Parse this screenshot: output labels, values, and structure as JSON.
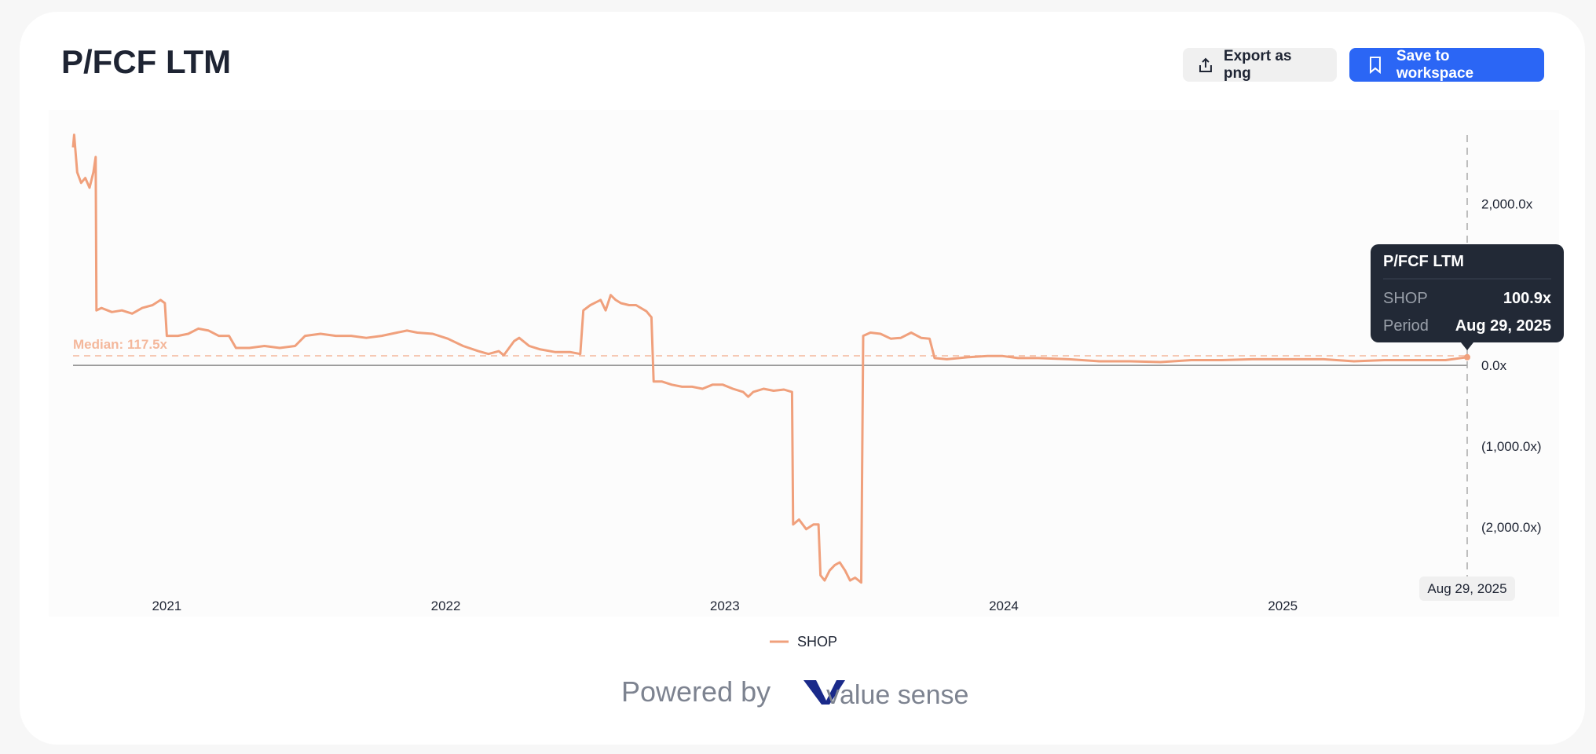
{
  "header": {
    "export_button": "Export as png",
    "save_button": "Save to workspace"
  },
  "chart_data": {
    "type": "line",
    "title": "P/FCF LTM",
    "x": [
      2020.664,
      2020.668,
      2020.679,
      2020.693,
      2020.708,
      2020.723,
      2020.737,
      2020.745,
      2020.748,
      2020.766,
      2020.803,
      2020.839,
      2020.876,
      2020.912,
      2020.949,
      2020.978,
      2020.993,
      2021.0,
      2021.04,
      2021.077,
      2021.113,
      2021.15,
      2021.186,
      2021.223,
      2021.248,
      2021.296,
      2021.35,
      2021.405,
      2021.46,
      2021.496,
      2021.551,
      2021.606,
      2021.661,
      2021.715,
      2021.77,
      2021.825,
      2021.861,
      2021.898,
      2021.953,
      2022.007,
      2022.062,
      2022.117,
      2022.153,
      2022.19,
      2022.208,
      2022.245,
      2022.263,
      2022.299,
      2022.336,
      2022.391,
      2022.445,
      2022.482,
      2022.493,
      2022.518,
      2022.555,
      2022.573,
      2022.591,
      2022.609,
      2022.628,
      2022.657,
      2022.682,
      2022.719,
      2022.737,
      2022.745,
      2022.774,
      2022.81,
      2022.847,
      2022.883,
      2022.92,
      2022.956,
      2022.993,
      2023.029,
      2023.066,
      2023.084,
      2023.102,
      2023.139,
      2023.175,
      2023.212,
      2023.241,
      2023.245,
      2023.266,
      2023.292,
      2023.318,
      2023.336,
      2023.343,
      2023.358,
      2023.376,
      2023.394,
      2023.412,
      2023.431,
      2023.449,
      2023.467,
      2023.489,
      2023.496,
      2023.522,
      2023.558,
      2023.595,
      2023.631,
      2023.668,
      2023.704,
      2023.734,
      2023.752,
      2023.796,
      2023.869,
      2023.942,
      2023.996,
      2024.051,
      2024.124,
      2024.234,
      2024.343,
      2024.453,
      2024.562,
      2024.672,
      2024.781,
      2024.891,
      2025.0,
      2025.146,
      2025.255,
      2025.365,
      2025.474,
      2025.584,
      2025.661
    ],
    "series": [
      {
        "name": "SHOP",
        "color": "#f0a07c",
        "values": [
          2700,
          2855,
          2390,
          2260,
          2320,
          2200,
          2390,
          2580,
          680,
          710,
          660,
          680,
          640,
          710,
          745,
          810,
          770,
          365,
          365,
          390,
          455,
          430,
          365,
          365,
          215,
          215,
          240,
          215,
          240,
          365,
          390,
          365,
          365,
          340,
          365,
          405,
          430,
          405,
          390,
          330,
          240,
          175,
          140,
          175,
          125,
          300,
          340,
          240,
          200,
          165,
          165,
          140,
          680,
          745,
          810,
          680,
          870,
          810,
          770,
          745,
          745,
          670,
          595,
          -200,
          -200,
          -240,
          -265,
          -265,
          -290,
          -240,
          -240,
          -290,
          -330,
          -390,
          -330,
          -290,
          -315,
          -300,
          -330,
          -1970,
          -1910,
          -2030,
          -1970,
          -1970,
          -2600,
          -2665,
          -2540,
          -2475,
          -2440,
          -2540,
          -2665,
          -2630,
          -2690,
          365,
          405,
          390,
          330,
          340,
          405,
          340,
          330,
          90,
          75,
          100,
          115,
          115,
          90,
          90,
          75,
          50,
          50,
          40,
          65,
          65,
          75,
          75,
          75,
          50,
          65,
          65,
          65,
          100.9
        ]
      }
    ],
    "xlim": [
      2020.664,
      2025.661
    ],
    "xticks": [
      2021,
      2022,
      2023,
      2024,
      2025
    ],
    "ylim": [
      -2800,
      2900
    ],
    "yticks": [
      {
        "value": 2000,
        "label": "2,000.0x"
      },
      {
        "value": 0,
        "label": "0.0x"
      },
      {
        "value": -1000,
        "label": "(1,000.0x)"
      },
      {
        "value": -2000,
        "label": "(2,000.0x)"
      }
    ],
    "median": {
      "value": 117.5,
      "label": "Median: 117.5x"
    },
    "cursor_date": "Aug 29, 2025",
    "tooltip": {
      "value_label": "100.9x",
      "period_label": "Period"
    }
  },
  "footer": {
    "powered_by": "Powered by",
    "brand": "value sense"
  }
}
